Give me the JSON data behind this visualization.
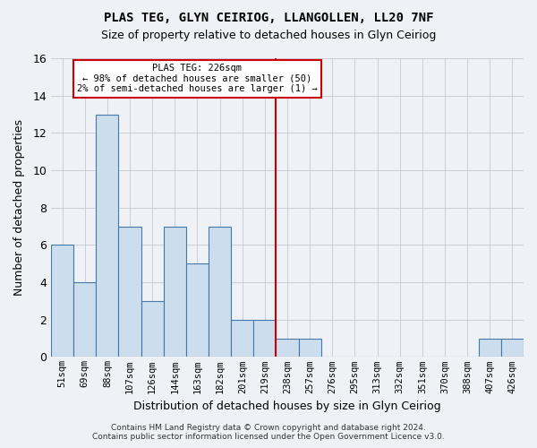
{
  "title": "PLAS TEG, GLYN CEIRIOG, LLANGOLLEN, LL20 7NF",
  "subtitle": "Size of property relative to detached houses in Glyn Ceiriog",
  "xlabel": "Distribution of detached houses by size in Glyn Ceiriog",
  "ylabel": "Number of detached properties",
  "categories": [
    "51sqm",
    "69sqm",
    "88sqm",
    "107sqm",
    "126sqm",
    "144sqm",
    "163sqm",
    "182sqm",
    "201sqm",
    "219sqm",
    "238sqm",
    "257sqm",
    "276sqm",
    "295sqm",
    "313sqm",
    "332sqm",
    "351sqm",
    "370sqm",
    "388sqm",
    "407sqm",
    "426sqm"
  ],
  "values": [
    6,
    4,
    13,
    7,
    3,
    7,
    5,
    7,
    2,
    2,
    1,
    1,
    0,
    0,
    0,
    0,
    0,
    0,
    0,
    1,
    1
  ],
  "bar_color": "#ccdded",
  "bar_edge_color": "#4477aa",
  "vline_x_index": 9.5,
  "vline_color": "#cc0000",
  "ylim": [
    0,
    16
  ],
  "yticks": [
    0,
    2,
    4,
    6,
    8,
    10,
    12,
    14,
    16
  ],
  "annotation_title": "PLAS TEG: 226sqm",
  "annotation_line1": "← 98% of detached houses are smaller (50)",
  "annotation_line2": "2% of semi-detached houses are larger (1) →",
  "annotation_box_color": "#ffffff",
  "annotation_box_edge": "#cc0000",
  "footer_line1": "Contains HM Land Registry data © Crown copyright and database right 2024.",
  "footer_line2": "Contains public sector information licensed under the Open Government Licence v3.0.",
  "background_color": "#eef2f7",
  "plot_background": "#eef2f7",
  "grid_color": "#c8c8d0"
}
